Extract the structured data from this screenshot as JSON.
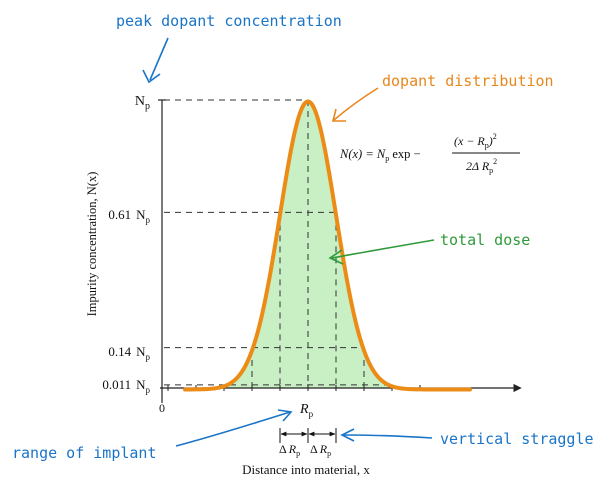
{
  "annotations": {
    "peak": {
      "text": "peak dopant concentration",
      "color": "#1a74c8"
    },
    "distribution": {
      "text": "dopant distribution",
      "color": "#e8871c"
    },
    "dose": {
      "text": "total dose",
      "color": "#2f9a3a"
    },
    "range": {
      "text": "range of implant",
      "color": "#1a74c8"
    },
    "straggle": {
      "text": "vertical straggle",
      "color": "#1a74c8"
    }
  },
  "axes": {
    "ylabel": "Impurity concentration, N(x)",
    "xlabel": "Distance into material, x",
    "origin": "0",
    "x_tick": {
      "main": "R",
      "sub": "p"
    }
  },
  "levels": [
    {
      "coef": "",
      "var": "N",
      "sub": "p",
      "fraction": 1.0
    },
    {
      "coef": "0.61",
      "var": "N",
      "sub": "p",
      "fraction": 0.61
    },
    {
      "coef": "0.14",
      "var": "N",
      "sub": "p",
      "fraction": 0.14
    },
    {
      "coef": "0.011",
      "var": "N",
      "sub": "p",
      "fraction": 0.011
    }
  ],
  "straggle_labels": [
    {
      "delta": "Δ",
      "var": "R",
      "sub": "p"
    },
    {
      "delta": "Δ",
      "var": "R",
      "sub": "p"
    }
  ],
  "equation": {
    "lhs": "N(x) = ",
    "np": "N",
    "np_sub": "p",
    "exp": " exp − ",
    "num_a": "(x − R",
    "num_sub": "p",
    "num_b": ")",
    "num_pow": "2",
    "den_a": "2Δ R",
    "den_sub": "p",
    "den_pow": "2"
  },
  "colors": {
    "curve": "#ec8c17",
    "fill": "#c9efc4",
    "axis": "#222222",
    "dash": "#333333"
  }
}
